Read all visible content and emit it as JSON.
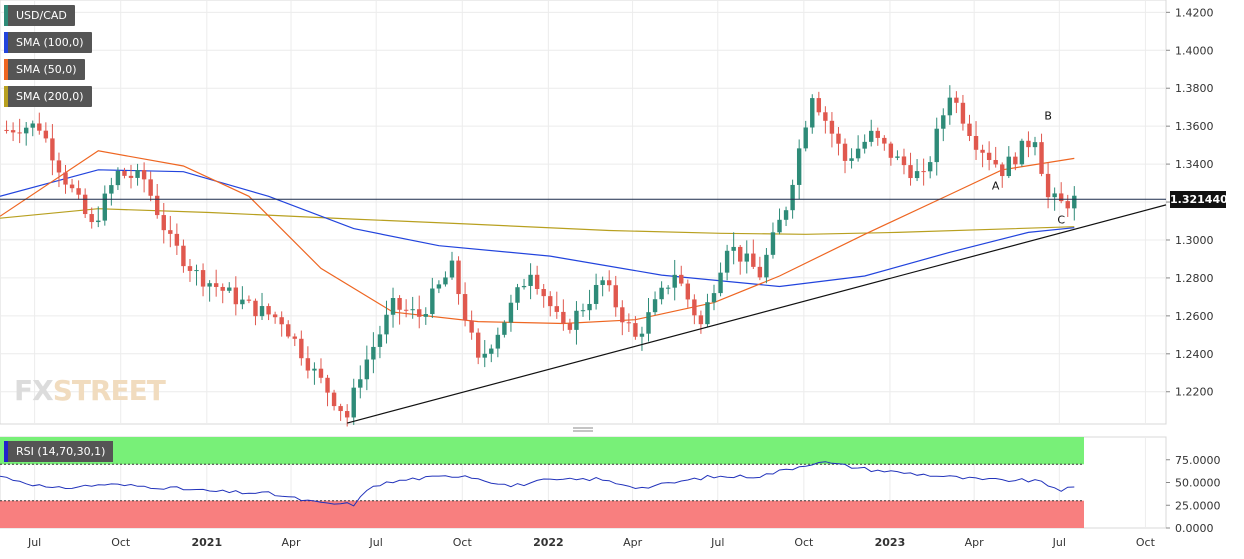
{
  "legend": {
    "symbol": "USD/CAD",
    "sma100": "SMA (100,0)",
    "sma50": "SMA (50,0)",
    "sma200": "SMA (200,0)",
    "rsi": "RSI (14,70,30,1)"
  },
  "watermark": {
    "fx": "FX",
    "street": "STREET"
  },
  "current_price_label": "1.321440",
  "colors": {
    "up": "#2e8b78",
    "down": "#e0584e",
    "sma100": "#2244dd",
    "sma50": "#ee6622",
    "sma200": "#b8a020",
    "rsi_line": "#2233bb",
    "overbought_zone": "#78f078",
    "oversold_zone": "#f87f7f"
  },
  "chart_data": {
    "type": "candlestick",
    "title": "USD/CAD",
    "interval": "weekly",
    "y_axis": {
      "ticks": [
        "1.4200",
        "1.4000",
        "1.3800",
        "1.3600",
        "1.3400",
        "1.3200",
        "1.3000",
        "1.2800",
        "1.2600",
        "1.2400",
        "1.2200"
      ],
      "range": [
        1.203,
        1.4265
      ]
    },
    "x_axis": {
      "ticks": [
        "Jul",
        "Oct",
        "2021",
        "Apr",
        "Jul",
        "Oct",
        "2022",
        "Apr",
        "Jul",
        "Oct",
        "2023",
        "Apr",
        "Jul",
        "Oct"
      ],
      "range": [
        "2020-05-25",
        "2023-10-23"
      ]
    },
    "current_price": 1.32144,
    "anchors": [
      {
        "date": "2020-06-01",
        "close": 1.358
      },
      {
        "date": "2020-06-15",
        "close": 1.36
      },
      {
        "date": "2020-07-06",
        "close": 1.36
      },
      {
        "date": "2020-08-03",
        "close": 1.332
      },
      {
        "date": "2020-08-31",
        "close": 1.307
      },
      {
        "date": "2020-09-28",
        "close": 1.335
      },
      {
        "date": "2020-10-26",
        "close": 1.332
      },
      {
        "date": "2020-11-23",
        "close": 1.299
      },
      {
        "date": "2020-12-21",
        "close": 1.282
      },
      {
        "date": "2021-02-15",
        "close": 1.265
      },
      {
        "date": "2021-03-22",
        "close": 1.258
      },
      {
        "date": "2021-04-26",
        "close": 1.23
      },
      {
        "date": "2021-05-31",
        "close": 1.207
      },
      {
        "date": "2021-06-14",
        "close": 1.23
      },
      {
        "date": "2021-07-19",
        "close": 1.265
      },
      {
        "date": "2021-08-16",
        "close": 1.26
      },
      {
        "date": "2021-09-20",
        "close": 1.285
      },
      {
        "date": "2021-10-18",
        "close": 1.235
      },
      {
        "date": "2021-11-15",
        "close": 1.258
      },
      {
        "date": "2021-12-13",
        "close": 1.285
      },
      {
        "date": "2022-01-17",
        "close": 1.252
      },
      {
        "date": "2022-02-28",
        "close": 1.278
      },
      {
        "date": "2022-04-04",
        "close": 1.248
      },
      {
        "date": "2022-05-16",
        "close": 1.283
      },
      {
        "date": "2022-06-13",
        "close": 1.255
      },
      {
        "date": "2022-07-11",
        "close": 1.298
      },
      {
        "date": "2022-08-15",
        "close": 1.282
      },
      {
        "date": "2022-09-12",
        "close": 1.318
      },
      {
        "date": "2022-10-10",
        "close": 1.378
      },
      {
        "date": "2022-11-14",
        "close": 1.342
      },
      {
        "date": "2022-12-12",
        "close": 1.355
      },
      {
        "date": "2023-01-09",
        "close": 1.342
      },
      {
        "date": "2023-02-06",
        "close": 1.332
      },
      {
        "date": "2023-03-06",
        "close": 1.378
      },
      {
        "date": "2023-04-03",
        "close": 1.352
      },
      {
        "date": "2023-05-01",
        "close": 1.337
      },
      {
        "date": "2023-06-05",
        "close": 1.355
      },
      {
        "date": "2023-06-19",
        "close": 1.322
      },
      {
        "date": "2023-07-03",
        "close": 1.319
      },
      {
        "date": "2023-07-17",
        "close": 1.321
      }
    ],
    "sma50": [
      {
        "date": "2020-05-25",
        "value": 1.3125
      },
      {
        "date": "2020-09-07",
        "value": 1.347
      },
      {
        "date": "2020-12-07",
        "value": 1.339
      },
      {
        "date": "2021-02-15",
        "value": 1.323
      },
      {
        "date": "2021-05-03",
        "value": 1.285
      },
      {
        "date": "2021-07-19",
        "value": 1.262
      },
      {
        "date": "2021-10-18",
        "value": 1.257
      },
      {
        "date": "2022-01-17",
        "value": 1.256
      },
      {
        "date": "2022-04-04",
        "value": 1.258
      },
      {
        "date": "2022-06-27",
        "value": 1.267
      },
      {
        "date": "2022-09-05",
        "value": 1.281
      },
      {
        "date": "2022-12-05",
        "value": 1.303
      },
      {
        "date": "2023-03-06",
        "value": 1.324
      },
      {
        "date": "2023-05-01",
        "value": 1.337
      },
      {
        "date": "2023-07-17",
        "value": 1.343
      }
    ],
    "sma100": [
      {
        "date": "2020-05-25",
        "value": 1.323
      },
      {
        "date": "2020-09-07",
        "value": 1.337
      },
      {
        "date": "2020-12-07",
        "value": 1.336
      },
      {
        "date": "2021-03-08",
        "value": 1.323
      },
      {
        "date": "2021-06-07",
        "value": 1.306
      },
      {
        "date": "2021-09-06",
        "value": 1.297
      },
      {
        "date": "2022-01-03",
        "value": 1.2915
      },
      {
        "date": "2022-05-02",
        "value": 1.2815
      },
      {
        "date": "2022-09-05",
        "value": 1.2755
      },
      {
        "date": "2022-12-05",
        "value": 1.281
      },
      {
        "date": "2023-03-06",
        "value": 1.2935
      },
      {
        "date": "2023-05-29",
        "value": 1.304
      },
      {
        "date": "2023-07-17",
        "value": 1.3065
      }
    ],
    "sma200": [
      {
        "date": "2020-05-25",
        "value": 1.3115
      },
      {
        "date": "2020-09-07",
        "value": 1.3165
      },
      {
        "date": "2021-01-04",
        "value": 1.3145
      },
      {
        "date": "2021-06-07",
        "value": 1.311
      },
      {
        "date": "2021-10-04",
        "value": 1.3085
      },
      {
        "date": "2022-03-07",
        "value": 1.305
      },
      {
        "date": "2022-07-04",
        "value": 1.3035
      },
      {
        "date": "2022-10-03",
        "value": 1.303
      },
      {
        "date": "2023-01-09",
        "value": 1.304
      },
      {
        "date": "2023-07-17",
        "value": 1.307
      }
    ],
    "trendline": [
      {
        "date": "2021-05-31",
        "value": 1.2035
      },
      {
        "date": "2023-10-23",
        "value": 1.3185
      }
    ],
    "price_line": 1.32144,
    "annotations": [
      {
        "text": "A",
        "date": "2023-04-24",
        "value": 1.3265
      },
      {
        "text": "B",
        "date": "2023-06-19",
        "value": 1.3635
      },
      {
        "text": "C",
        "date": "2023-07-03",
        "value": 1.3088
      }
    ],
    "rsi": {
      "ticks": [
        "75.0000",
        "50.0000",
        "25.0000",
        "0.0000"
      ],
      "range": [
        0,
        100
      ],
      "overbought": 70,
      "oversold": 30,
      "anchors": [
        {
          "date": "2020-05-25",
          "value": 57
        },
        {
          "date": "2020-07-20",
          "value": 43
        },
        {
          "date": "2020-09-14",
          "value": 48
        },
        {
          "date": "2020-11-09",
          "value": 45
        },
        {
          "date": "2021-01-11",
          "value": 40
        },
        {
          "date": "2021-03-08",
          "value": 38
        },
        {
          "date": "2021-05-03",
          "value": 27
        },
        {
          "date": "2021-06-07",
          "value": 26
        },
        {
          "date": "2021-06-28",
          "value": 47
        },
        {
          "date": "2021-08-09",
          "value": 54
        },
        {
          "date": "2021-10-04",
          "value": 58
        },
        {
          "date": "2021-11-22",
          "value": 46
        },
        {
          "date": "2021-12-27",
          "value": 52
        },
        {
          "date": "2022-02-21",
          "value": 54
        },
        {
          "date": "2022-04-11",
          "value": 44
        },
        {
          "date": "2022-06-20",
          "value": 56
        },
        {
          "date": "2022-08-15",
          "value": 57
        },
        {
          "date": "2022-10-17",
          "value": 73
        },
        {
          "date": "2022-12-12",
          "value": 64
        },
        {
          "date": "2023-02-13",
          "value": 58
        },
        {
          "date": "2023-04-10",
          "value": 53
        },
        {
          "date": "2023-06-05",
          "value": 52
        },
        {
          "date": "2023-07-03",
          "value": 42
        },
        {
          "date": "2023-07-17",
          "value": 44
        }
      ]
    }
  }
}
